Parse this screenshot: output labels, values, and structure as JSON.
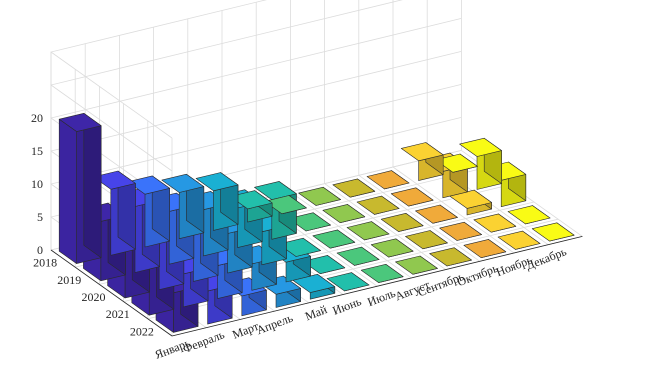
{
  "chart_data": {
    "type": "bar3",
    "months": [
      "Январь",
      "Февраль",
      "Март",
      "Апрель",
      "Май",
      "Июнь",
      "Июль",
      "Август",
      "Сентябрь",
      "Октябрь",
      "Ноябрь",
      "Декабрь"
    ],
    "years": [
      "2018",
      "2019",
      "2020",
      "2021",
      "2022"
    ],
    "values": [
      [
        20,
        10,
        8,
        7,
        6,
        2,
        0,
        0,
        0,
        0,
        3,
        0
      ],
      [
        9,
        10,
        8,
        7,
        6,
        6,
        0,
        0,
        0,
        0,
        4,
        5
      ],
      [
        8,
        9,
        8,
        6,
        5,
        0,
        0,
        0,
        0,
        0,
        1,
        4
      ],
      [
        7,
        5,
        5,
        4,
        3,
        0,
        0,
        0,
        0,
        0,
        0,
        0
      ],
      [
        6,
        5,
        3,
        2,
        1,
        0,
        0,
        0,
        0,
        0,
        0,
        0
      ]
    ],
    "zticks": [
      0,
      5,
      10,
      15,
      20
    ],
    "zlim": [
      0,
      30
    ],
    "grid": true,
    "colormap": "parula",
    "month_colors": [
      "#3e26a8",
      "#4744e9",
      "#3a73fa",
      "#2698e3",
      "#1ab0d3",
      "#22bfab",
      "#4bc77c",
      "#90c84f",
      "#c8b92e",
      "#f0aa3a",
      "#fbd232",
      "#f9fb15"
    ]
  }
}
